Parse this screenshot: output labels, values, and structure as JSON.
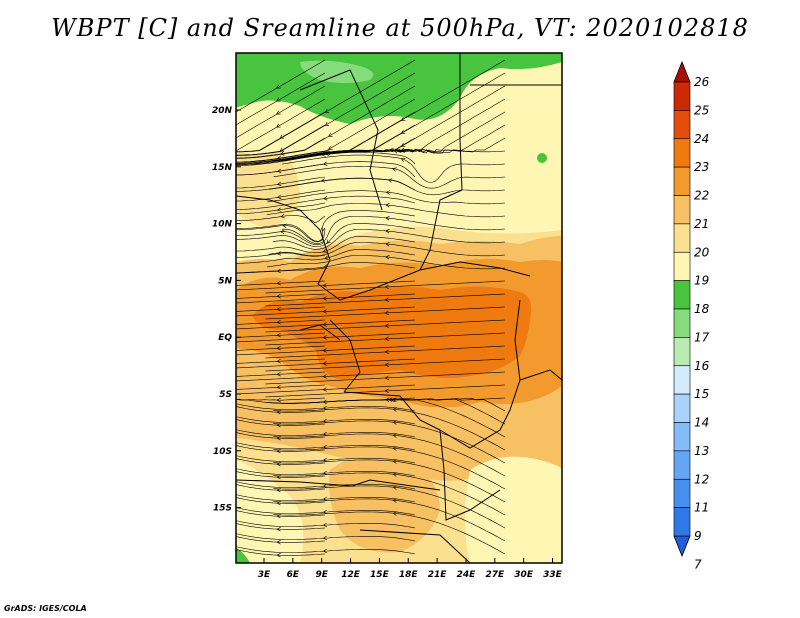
{
  "title": "WBPT [C] and Sreamline at 500hPa, VT: 2020102818",
  "credit": "GrADS: IGES/COLA",
  "lon_ticks": [
    "3E",
    "6E",
    "9E",
    "12E",
    "15E",
    "18E",
    "21E",
    "24E",
    "27E",
    "30E",
    "33E"
  ],
  "lat_ticks": [
    "20N",
    "15N",
    "10N",
    "5N",
    "EQ",
    "5S",
    "10S",
    "15S"
  ],
  "colorbar": {
    "labels": [
      "7",
      "9",
      "11",
      "12",
      "13",
      "14",
      "15",
      "16",
      "17",
      "18",
      "19",
      "20",
      "21",
      "22",
      "23",
      "24",
      "25",
      "26"
    ],
    "colors": [
      "#1f5fd9",
      "#2f78e8",
      "#4690f0",
      "#63a6f5",
      "#84bcf8",
      "#a9d3fa",
      "#d2ecfb",
      "#b8ebb0",
      "#86dc7c",
      "#49c43f",
      "#fff6b4",
      "#fbe08f",
      "#f7c062",
      "#f39a2e",
      "#ee7a10",
      "#e44e0a",
      "#cc2a05",
      "#a80f02"
    ]
  },
  "field": {
    "variable": "WBPT",
    "level": "500hPa",
    "color_key": {
      "green": "#49c43f",
      "light_green": "#86dc7c",
      "pale_yellow": "#fff6b4",
      "yellow": "#fbe08f",
      "light_orange": "#f7c062",
      "orange": "#f39a2e",
      "dark_orange": "#ee7a10"
    }
  }
}
